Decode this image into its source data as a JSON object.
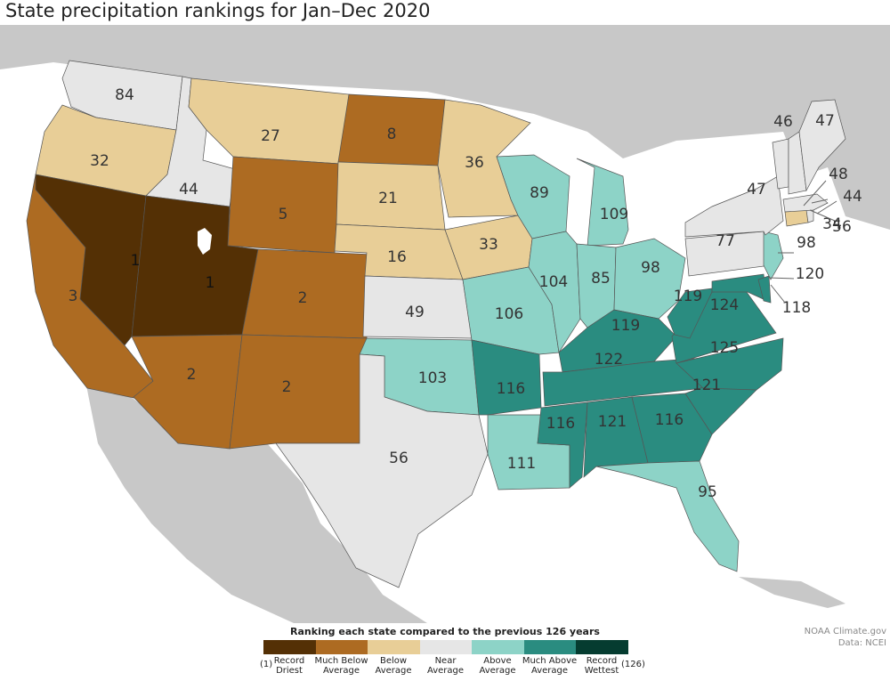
{
  "title": "State precipitation rankings for Jan–Dec 2020",
  "legend": {
    "title": "Ranking each state compared to the previous 126 years",
    "min_label": "(1)",
    "max_label": "(126)",
    "classes": [
      {
        "line1": "Record",
        "line2": "Driest",
        "color": "#543005"
      },
      {
        "line1": "Much Below",
        "line2": "Average",
        "color": "#ad6b22"
      },
      {
        "line1": "Below",
        "line2": "Average",
        "color": "#e8ce97"
      },
      {
        "line1": "Near",
        "line2": "Average",
        "color": "#e6e6e6"
      },
      {
        "line1": "Above",
        "line2": "Average",
        "color": "#8dd3c7"
      },
      {
        "line1": "Much Above",
        "line2": "Average",
        "color": "#2a8c80"
      },
      {
        "line1": "Record",
        "line2": "Wettest",
        "color": "#053c30"
      }
    ]
  },
  "credit": {
    "line1": "NOAA Climate.gov",
    "line2": "Data: NCEI"
  },
  "colors": {
    "ocean": "#ffffff",
    "land": "#c8c8c8",
    "border": "#555555"
  },
  "states": [
    {
      "code": "WA",
      "rank": "84",
      "class": 3
    },
    {
      "code": "OR",
      "rank": "32",
      "class": 2
    },
    {
      "code": "CA",
      "rank": "3",
      "class": 1
    },
    {
      "code": "NV",
      "rank": "1",
      "class": 0
    },
    {
      "code": "ID",
      "rank": "44",
      "class": 3
    },
    {
      "code": "MT",
      "rank": "27",
      "class": 2
    },
    {
      "code": "WY",
      "rank": "5",
      "class": 1
    },
    {
      "code": "UT",
      "rank": "1",
      "class": 0
    },
    {
      "code": "AZ",
      "rank": "2",
      "class": 1
    },
    {
      "code": "CO",
      "rank": "2",
      "class": 1
    },
    {
      "code": "NM",
      "rank": "2",
      "class": 1
    },
    {
      "code": "ND",
      "rank": "8",
      "class": 1
    },
    {
      "code": "SD",
      "rank": "21",
      "class": 2
    },
    {
      "code": "NE",
      "rank": "16",
      "class": 2
    },
    {
      "code": "KS",
      "rank": "49",
      "class": 3
    },
    {
      "code": "OK",
      "rank": "103",
      "class": 4
    },
    {
      "code": "TX",
      "rank": "56",
      "class": 3
    },
    {
      "code": "MN",
      "rank": "36",
      "class": 2
    },
    {
      "code": "IA",
      "rank": "33",
      "class": 2
    },
    {
      "code": "MO",
      "rank": "106",
      "class": 4
    },
    {
      "code": "AR",
      "rank": "116",
      "class": 5
    },
    {
      "code": "LA",
      "rank": "111",
      "class": 4
    },
    {
      "code": "WI",
      "rank": "89",
      "class": 4
    },
    {
      "code": "IL",
      "rank": "104",
      "class": 4
    },
    {
      "code": "MI",
      "rank": "109",
      "class": 4
    },
    {
      "code": "IN",
      "rank": "85",
      "class": 4
    },
    {
      "code": "OH",
      "rank": "98",
      "class": 4
    },
    {
      "code": "KY",
      "rank": "119",
      "class": 5
    },
    {
      "code": "TN",
      "rank": "122",
      "class": 5
    },
    {
      "code": "MS",
      "rank": "116",
      "class": 5
    },
    {
      "code": "AL",
      "rank": "121",
      "class": 5
    },
    {
      "code": "GA",
      "rank": "116",
      "class": 5
    },
    {
      "code": "FL",
      "rank": "95",
      "class": 4
    },
    {
      "code": "SC",
      "rank": "121",
      "class": 5
    },
    {
      "code": "NC",
      "rank": "125",
      "class": 5
    },
    {
      "code": "VA",
      "rank": "124",
      "class": 5
    },
    {
      "code": "WV",
      "rank": "119",
      "class": 5
    },
    {
      "code": "MD",
      "rank": "120",
      "class": 5
    },
    {
      "code": "DE",
      "rank": "118",
      "class": 5
    },
    {
      "code": "PA",
      "rank": "77",
      "class": 3
    },
    {
      "code": "NJ",
      "rank": "98",
      "class": 4
    },
    {
      "code": "NY",
      "rank": "47",
      "class": 3
    },
    {
      "code": "CT",
      "rank": "34",
      "class": 2
    },
    {
      "code": "RI",
      "rank": "56",
      "class": 3
    },
    {
      "code": "MA",
      "rank": "44",
      "class": 3
    },
    {
      "code": "VT",
      "rank": "46",
      "class": 3
    },
    {
      "code": "NH",
      "rank": "48",
      "class": 3
    },
    {
      "code": "ME",
      "rank": "47",
      "class": 3
    }
  ]
}
